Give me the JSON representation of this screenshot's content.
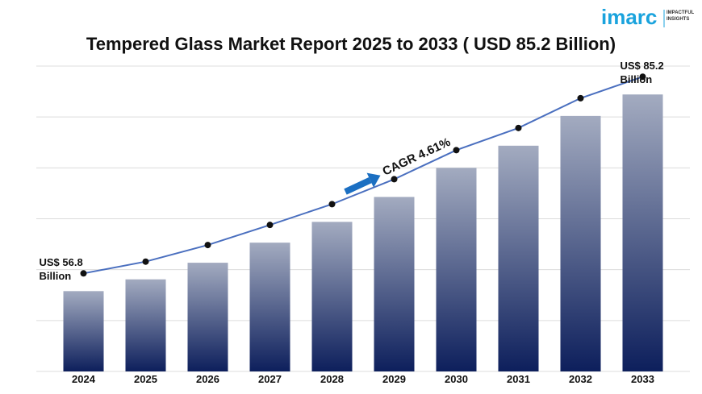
{
  "chart_data": {
    "type": "bar",
    "title": "Tempered Glass Market Report 2025 to 2033 ( USD 85.2 Billion)",
    "categories": [
      "2024",
      "2025",
      "2026",
      "2027",
      "2028",
      "2029",
      "2030",
      "2031",
      "2032",
      "2033"
    ],
    "values": [
      56.8,
      58.5,
      60.9,
      63.8,
      66.8,
      70.4,
      74.6,
      77.8,
      82.1,
      85.2
    ],
    "value_labels": [
      "US$ 56.8 Billion",
      null,
      null,
      null,
      null,
      null,
      null,
      null,
      null,
      "US$ 85.2 Billion"
    ],
    "color": "#0d1f5c",
    "line_color": "#4a6fbf",
    "annotation": "CAGR 4.61%",
    "ylim": [
      45.2,
      89.3
    ],
    "grid": true
  },
  "logo": {
    "name": "imarc",
    "tagline": "IMPACTFUL INSIGHTS"
  }
}
